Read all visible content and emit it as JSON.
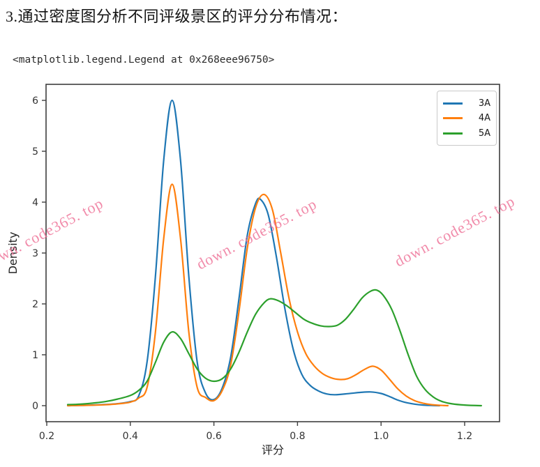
{
  "header": {
    "title": "3.通过密度图分析不同评级景区的评分分布情况："
  },
  "output": {
    "repr": "<matplotlib.legend.Legend at 0x268eee96750>"
  },
  "watermark": {
    "text": "down. code365. top",
    "color": "#ee6f95"
  },
  "chart_data": {
    "type": "line",
    "subtype": "kde-density",
    "title": "",
    "xlabel": "评分",
    "ylabel": "Density",
    "xlim": [
      0.2,
      1.28
    ],
    "ylim": [
      -0.3,
      6.3
    ],
    "xticks": [
      "0.2",
      "0.4",
      "0.6",
      "0.8",
      "1.0",
      "1.2"
    ],
    "yticks": [
      "0",
      "1",
      "2",
      "3",
      "4",
      "5",
      "6"
    ],
    "grid": false,
    "legend_position": "upper right",
    "axis_color": "#3e3e3e",
    "series": [
      {
        "name": "3A",
        "color": "#1f77b4",
        "points": [
          [
            0.25,
            0.0
          ],
          [
            0.28,
            0.005
          ],
          [
            0.31,
            0.012
          ],
          [
            0.34,
            0.022
          ],
          [
            0.37,
            0.04
          ],
          [
            0.4,
            0.08
          ],
          [
            0.42,
            0.19
          ],
          [
            0.44,
            0.86
          ],
          [
            0.46,
            2.53
          ],
          [
            0.48,
            4.83
          ],
          [
            0.5,
            6.0
          ],
          [
            0.52,
            4.83
          ],
          [
            0.54,
            2.53
          ],
          [
            0.56,
            0.86
          ],
          [
            0.58,
            0.25
          ],
          [
            0.6,
            0.12
          ],
          [
            0.62,
            0.35
          ],
          [
            0.64,
            0.95
          ],
          [
            0.66,
            2.1
          ],
          [
            0.68,
            3.35
          ],
          [
            0.7,
            3.98
          ],
          [
            0.712,
            4.05
          ],
          [
            0.73,
            3.75
          ],
          [
            0.75,
            2.9
          ],
          [
            0.77,
            1.9
          ],
          [
            0.79,
            1.1
          ],
          [
            0.81,
            0.62
          ],
          [
            0.83,
            0.4
          ],
          [
            0.85,
            0.29
          ],
          [
            0.87,
            0.23
          ],
          [
            0.89,
            0.215
          ],
          [
            0.92,
            0.235
          ],
          [
            0.95,
            0.26
          ],
          [
            0.975,
            0.27
          ],
          [
            1.0,
            0.24
          ],
          [
            1.02,
            0.18
          ],
          [
            1.04,
            0.11
          ],
          [
            1.06,
            0.06
          ],
          [
            1.08,
            0.03
          ],
          [
            1.1,
            0.012
          ],
          [
            1.12,
            0.004
          ],
          [
            1.14,
            0.0
          ]
        ]
      },
      {
        "name": "4A",
        "color": "#ff7f0e",
        "points": [
          [
            0.25,
            0.0
          ],
          [
            0.28,
            0.004
          ],
          [
            0.31,
            0.009
          ],
          [
            0.34,
            0.018
          ],
          [
            0.37,
            0.035
          ],
          [
            0.4,
            0.07
          ],
          [
            0.42,
            0.15
          ],
          [
            0.44,
            0.36
          ],
          [
            0.46,
            1.44
          ],
          [
            0.48,
            3.29
          ],
          [
            0.5,
            4.35
          ],
          [
            0.52,
            3.29
          ],
          [
            0.54,
            1.44
          ],
          [
            0.56,
            0.36
          ],
          [
            0.58,
            0.16
          ],
          [
            0.6,
            0.1
          ],
          [
            0.62,
            0.3
          ],
          [
            0.64,
            0.8
          ],
          [
            0.66,
            1.85
          ],
          [
            0.68,
            3.1
          ],
          [
            0.7,
            3.9
          ],
          [
            0.72,
            4.15
          ],
          [
            0.74,
            3.85
          ],
          [
            0.76,
            3.0
          ],
          [
            0.78,
            2.1
          ],
          [
            0.8,
            1.45
          ],
          [
            0.82,
            1.02
          ],
          [
            0.84,
            0.78
          ],
          [
            0.86,
            0.63
          ],
          [
            0.88,
            0.55
          ],
          [
            0.9,
            0.515
          ],
          [
            0.92,
            0.53
          ],
          [
            0.94,
            0.61
          ],
          [
            0.96,
            0.71
          ],
          [
            0.98,
            0.775
          ],
          [
            1.0,
            0.7
          ],
          [
            1.02,
            0.52
          ],
          [
            1.04,
            0.33
          ],
          [
            1.06,
            0.19
          ],
          [
            1.08,
            0.1
          ],
          [
            1.1,
            0.05
          ],
          [
            1.12,
            0.02
          ],
          [
            1.14,
            0.007
          ],
          [
            1.16,
            0.0
          ]
        ]
      },
      {
        "name": "5A",
        "color": "#2ca02c",
        "points": [
          [
            0.25,
            0.02
          ],
          [
            0.28,
            0.03
          ],
          [
            0.31,
            0.05
          ],
          [
            0.34,
            0.08
          ],
          [
            0.37,
            0.13
          ],
          [
            0.4,
            0.2
          ],
          [
            0.42,
            0.3
          ],
          [
            0.44,
            0.48
          ],
          [
            0.46,
            0.85
          ],
          [
            0.48,
            1.25
          ],
          [
            0.5,
            1.45
          ],
          [
            0.52,
            1.32
          ],
          [
            0.54,
            1.02
          ],
          [
            0.56,
            0.72
          ],
          [
            0.58,
            0.54
          ],
          [
            0.6,
            0.48
          ],
          [
            0.62,
            0.53
          ],
          [
            0.64,
            0.72
          ],
          [
            0.66,
            1.05
          ],
          [
            0.68,
            1.45
          ],
          [
            0.7,
            1.8
          ],
          [
            0.72,
            2.02
          ],
          [
            0.735,
            2.1
          ],
          [
            0.755,
            2.06
          ],
          [
            0.775,
            1.96
          ],
          [
            0.795,
            1.83
          ],
          [
            0.815,
            1.7
          ],
          [
            0.835,
            1.62
          ],
          [
            0.855,
            1.57
          ],
          [
            0.875,
            1.555
          ],
          [
            0.895,
            1.58
          ],
          [
            0.915,
            1.7
          ],
          [
            0.935,
            1.9
          ],
          [
            0.955,
            2.12
          ],
          [
            0.975,
            2.25
          ],
          [
            0.99,
            2.27
          ],
          [
            1.005,
            2.17
          ],
          [
            1.025,
            1.9
          ],
          [
            1.045,
            1.48
          ],
          [
            1.065,
            1.0
          ],
          [
            1.085,
            0.58
          ],
          [
            1.105,
            0.32
          ],
          [
            1.125,
            0.17
          ],
          [
            1.145,
            0.085
          ],
          [
            1.17,
            0.035
          ],
          [
            1.2,
            0.012
          ],
          [
            1.24,
            0.0
          ]
        ]
      }
    ]
  }
}
